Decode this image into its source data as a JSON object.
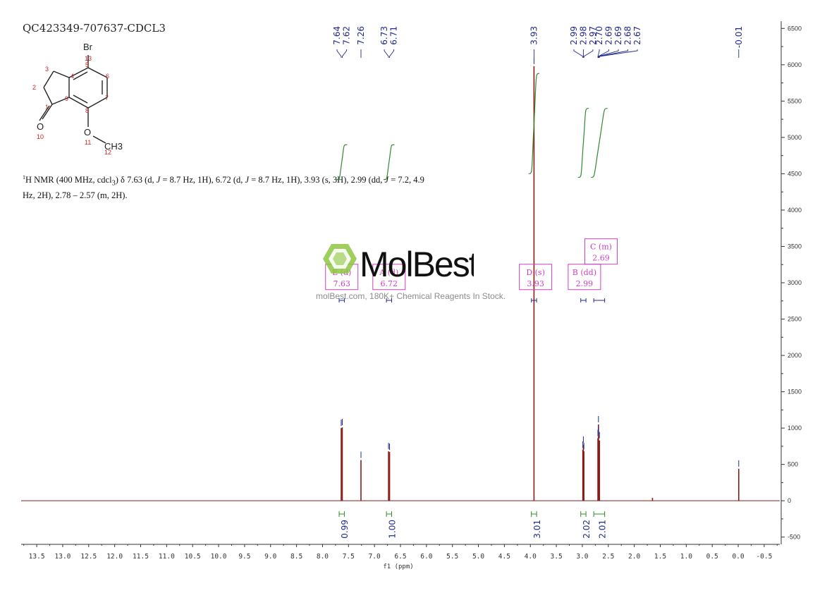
{
  "sample_title": "QC423349-707637-CDCL3",
  "structure": {
    "atoms": [
      {
        "text": "Br"
      },
      {
        "text": "13"
      },
      {
        "text": "3"
      },
      {
        "text": "4"
      },
      {
        "text": "5"
      },
      {
        "text": "6"
      },
      {
        "text": "2"
      },
      {
        "text": "9"
      },
      {
        "text": "7"
      },
      {
        "text": "1"
      },
      {
        "text": "8"
      },
      {
        "text": "O"
      },
      {
        "text": "10"
      },
      {
        "text": "O"
      },
      {
        "text": "11"
      },
      {
        "text": "CH3"
      },
      {
        "text": "12"
      }
    ]
  },
  "nmr_description": {
    "nucleus_sup": "1",
    "text_1": "H NMR (400 MHz, cdcl",
    "sub_3": "3",
    "text_2": ") δ 7.63 (d, ",
    "j1": "J",
    "text_3": " = 8.7 Hz, 1H), 6.72 (d, ",
    "j2": "J",
    "text_4": " = 8.7 Hz, 1H), 3.93 (s, 3H), 2.99 (dd, ",
    "j3": "J",
    "text_5": " = 7.2, 4.9 Hz, 2H), 2.78 – 2.57 (m, 2H)."
  },
  "watermark": {
    "brand": "MolBest",
    "tagline": "molBest.com, 180K+ Chemical Reagents In Stock."
  },
  "colors": {
    "spectrum": "#8b1a1a",
    "peak_label": "#1f2a8c",
    "integral": "#2e8b2e",
    "multiplet_box": "#d040c0",
    "watermark_green": "#8dc63f",
    "axis": "#333333"
  },
  "chart_data": {
    "type": "line",
    "xlabel": "f1 (ppm)",
    "x_reversed": true,
    "xlim": [
      13.8,
      -0.8
    ],
    "ylim": [
      -600,
      6600
    ],
    "x_ticks": [
      13.5,
      13.0,
      12.5,
      12.0,
      11.5,
      11.0,
      10.5,
      10.0,
      9.5,
      9.0,
      8.5,
      8.0,
      7.5,
      7.0,
      6.5,
      6.0,
      5.5,
      5.0,
      4.5,
      4.0,
      3.5,
      3.0,
      2.5,
      2.0,
      1.5,
      1.0,
      0.5,
      0.0,
      -0.5
    ],
    "x_tick_labels": [
      "13.5",
      "13.0",
      "12.5",
      "12.0",
      "11.5",
      "11.0",
      "10.5",
      "10.0",
      "9.5",
      "9.0",
      "8.5",
      "8.0",
      "7.5",
      "7.0",
      "6.5",
      "6.0",
      "5.5",
      "5.0",
      "4.5",
      "4.0",
      "3.5",
      "3.0",
      "2.5",
      "2.0",
      "1.5",
      "1.0",
      "0.5",
      "0.0",
      "-0.5"
    ],
    "y_ticks": [
      6500,
      6000,
      5500,
      5000,
      4500,
      4000,
      3500,
      3000,
      2500,
      2000,
      1500,
      1000,
      500,
      0,
      -500
    ],
    "y_tick_labels": [
      "6500",
      "6000",
      "5500",
      "5000",
      "4500",
      "4000",
      "3500",
      "3000",
      "2500",
      "2000",
      "1500",
      "1000",
      "500",
      "0",
      "-500"
    ],
    "peaks": [
      {
        "ppm": 7.64,
        "height": 1000
      },
      {
        "ppm": 7.62,
        "height": 1010
      },
      {
        "ppm": 7.26,
        "height": 560
      },
      {
        "ppm": 6.73,
        "height": 680
      },
      {
        "ppm": 6.71,
        "height": 670
      },
      {
        "ppm": 3.93,
        "height": 5980
      },
      {
        "ppm": 2.99,
        "height": 700
      },
      {
        "ppm": 2.98,
        "height": 770
      },
      {
        "ppm": 2.97,
        "height": 680
      },
      {
        "ppm": 2.7,
        "height": 860
      },
      {
        "ppm": 2.69,
        "height": 1050
      },
      {
        "ppm": 2.69,
        "height": 900
      },
      {
        "ppm": 2.67,
        "height": 830
      },
      {
        "ppm": 1.65,
        "height": 40
      },
      {
        "ppm": -0.01,
        "height": 440
      }
    ],
    "peak_labels": [
      {
        "text": "7.64",
        "ppm": 7.64
      },
      {
        "text": "7.62",
        "ppm": 7.62
      },
      {
        "text": "7.26",
        "ppm": 7.26
      },
      {
        "text": "6.73",
        "ppm": 6.73
      },
      {
        "text": "6.71",
        "ppm": 6.71
      },
      {
        "text": "3.93",
        "ppm": 3.93
      },
      {
        "text": "2.99",
        "ppm": 2.99
      },
      {
        "text": "2.98",
        "ppm": 2.98
      },
      {
        "text": "2.97",
        "ppm": 2.97
      },
      {
        "text": "2.70",
        "ppm": 2.7
      },
      {
        "text": "2.69",
        "ppm": 2.69
      },
      {
        "text": "2.69",
        "ppm": 2.69
      },
      {
        "text": "2.68",
        "ppm": 2.68
      },
      {
        "text": "2.67",
        "ppm": 2.67
      },
      {
        "text": "-0.01",
        "ppm": -0.01
      }
    ],
    "integrals": [
      {
        "from": 7.68,
        "to": 7.58,
        "value": "0.99"
      },
      {
        "from": 6.77,
        "to": 6.67,
        "value": "1.00"
      },
      {
        "from": 3.98,
        "to": 3.88,
        "value": "3.01"
      },
      {
        "from": 3.03,
        "to": 2.93,
        "value": "2.02"
      },
      {
        "from": 2.78,
        "to": 2.57,
        "value": "2.01"
      }
    ],
    "integral_curves": [
      {
        "from": 7.68,
        "to": 7.58,
        "y_low": 4420,
        "y_high": 4900
      },
      {
        "from": 6.77,
        "to": 6.67,
        "y_low": 4420,
        "y_high": 4900
      },
      {
        "from": 3.98,
        "to": 3.88,
        "y_low": 4500,
        "y_high": 5880
      },
      {
        "from": 3.03,
        "to": 2.93,
        "y_low": 4450,
        "y_high": 5400
      },
      {
        "from": 2.78,
        "to": 2.57,
        "y_low": 4450,
        "y_high": 5400
      }
    ],
    "multiplets": [
      {
        "label": "E (d)",
        "shift": "7.63",
        "from": 7.68,
        "to": 7.58,
        "box_ppm": 7.63,
        "box_y": 3080
      },
      {
        "label": "A (d)",
        "shift": "6.72",
        "from": 6.77,
        "to": 6.67,
        "box_ppm": 6.72,
        "box_y": 3080
      },
      {
        "label": "D (s)",
        "shift": "3.93",
        "from": 3.98,
        "to": 3.88,
        "box_ppm": 3.9,
        "box_y": 3080
      },
      {
        "label": "B (dd)",
        "shift": "2.99",
        "from": 3.03,
        "to": 2.93,
        "box_ppm": 2.96,
        "box_y": 3080
      },
      {
        "label": "C (m)",
        "shift": "2.69",
        "from": 2.78,
        "to": 2.57,
        "box_ppm": 2.64,
        "box_y": 3430
      }
    ]
  }
}
